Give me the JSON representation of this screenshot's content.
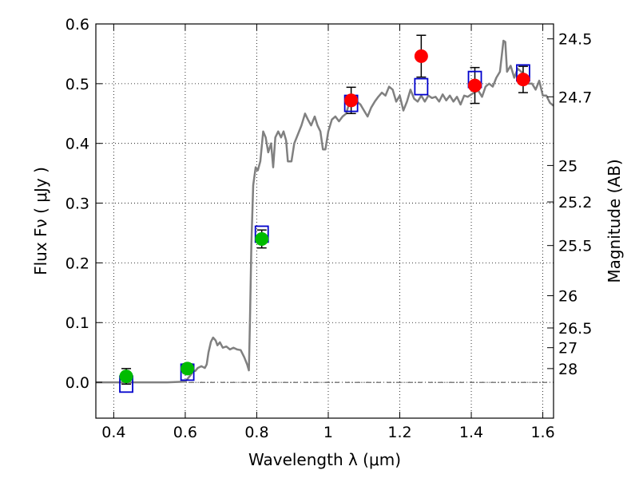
{
  "chart_data": {
    "type": "scatter",
    "xlabel": "Wavelength  λ (μm)",
    "ylabel": "Flux  Fν  ( μJy )",
    "y2label": "Magnitude (AB)",
    "xlim": [
      0.35,
      1.63
    ],
    "ylim": [
      -0.06,
      0.6
    ],
    "grid": true,
    "x_ticks": [
      0.4,
      0.6,
      0.8,
      1.0,
      1.2,
      1.4,
      1.6
    ],
    "x_tick_labels": [
      "0.4",
      "0.6",
      "0.8",
      "1",
      "1.2",
      "1.4",
      "1.6"
    ],
    "y_ticks": [
      0.0,
      0.1,
      0.2,
      0.3,
      0.4,
      0.5,
      0.6
    ],
    "y_tick_labels": [
      "0.0",
      "0.1",
      "0.2",
      "0.3",
      "0.4",
      "0.5",
      "0.6"
    ],
    "y2_ticks": [
      {
        "label": "24.5",
        "flux": 0.575
      },
      {
        "label": "24.7",
        "flux": 0.478
      },
      {
        "label": "25",
        "flux": 0.363
      },
      {
        "label": "25.2",
        "flux": 0.302
      },
      {
        "label": "25.5",
        "flux": 0.229
      },
      {
        "label": "26",
        "flux": 0.145
      },
      {
        "label": "26.5",
        "flux": 0.091
      },
      {
        "label": "27",
        "flux": 0.058
      },
      {
        "label": "28",
        "flux": 0.023
      }
    ],
    "colors": {
      "model": "#808080",
      "optical": "#00bb00",
      "nir": "#ff0000",
      "model_box": "#0000cc",
      "errorbar": "#000000"
    },
    "series": [
      {
        "kind": "model-spectrum",
        "points": [
          [
            0.35,
            0.0
          ],
          [
            0.55,
            0.0
          ],
          [
            0.6,
            0.001
          ],
          [
            0.615,
            0.012
          ],
          [
            0.622,
            0.019
          ],
          [
            0.628,
            0.019
          ],
          [
            0.635,
            0.024
          ],
          [
            0.645,
            0.027
          ],
          [
            0.655,
            0.024
          ],
          [
            0.66,
            0.03
          ],
          [
            0.665,
            0.05
          ],
          [
            0.672,
            0.068
          ],
          [
            0.678,
            0.075
          ],
          [
            0.685,
            0.07
          ],
          [
            0.69,
            0.062
          ],
          [
            0.697,
            0.067
          ],
          [
            0.705,
            0.058
          ],
          [
            0.715,
            0.06
          ],
          [
            0.725,
            0.055
          ],
          [
            0.735,
            0.058
          ],
          [
            0.745,
            0.055
          ],
          [
            0.755,
            0.054
          ],
          [
            0.765,
            0.042
          ],
          [
            0.773,
            0.03
          ],
          [
            0.778,
            0.02
          ],
          [
            0.781,
            0.1
          ],
          [
            0.785,
            0.23
          ],
          [
            0.79,
            0.33
          ],
          [
            0.797,
            0.36
          ],
          [
            0.803,
            0.355
          ],
          [
            0.81,
            0.37
          ],
          [
            0.818,
            0.42
          ],
          [
            0.825,
            0.41
          ],
          [
            0.832,
            0.385
          ],
          [
            0.84,
            0.4
          ],
          [
            0.846,
            0.36
          ],
          [
            0.852,
            0.41
          ],
          [
            0.86,
            0.42
          ],
          [
            0.868,
            0.41
          ],
          [
            0.875,
            0.42
          ],
          [
            0.882,
            0.405
          ],
          [
            0.887,
            0.37
          ],
          [
            0.897,
            0.37
          ],
          [
            0.905,
            0.4
          ],
          [
            0.915,
            0.415
          ],
          [
            0.925,
            0.43
          ],
          [
            0.935,
            0.45
          ],
          [
            0.943,
            0.44
          ],
          [
            0.952,
            0.43
          ],
          [
            0.962,
            0.445
          ],
          [
            0.97,
            0.43
          ],
          [
            0.978,
            0.42
          ],
          [
            0.985,
            0.39
          ],
          [
            0.992,
            0.39
          ],
          [
            1.0,
            0.42
          ],
          [
            1.01,
            0.44
          ],
          [
            1.02,
            0.445
          ],
          [
            1.03,
            0.437
          ],
          [
            1.04,
            0.445
          ],
          [
            1.05,
            0.45
          ],
          [
            1.06,
            0.47
          ],
          [
            1.07,
            0.475
          ],
          [
            1.08,
            0.47
          ],
          [
            1.09,
            0.465
          ],
          [
            1.1,
            0.455
          ],
          [
            1.11,
            0.445
          ],
          [
            1.12,
            0.46
          ],
          [
            1.13,
            0.47
          ],
          [
            1.14,
            0.478
          ],
          [
            1.15,
            0.485
          ],
          [
            1.16,
            0.48
          ],
          [
            1.17,
            0.495
          ],
          [
            1.18,
            0.49
          ],
          [
            1.19,
            0.47
          ],
          [
            1.2,
            0.48
          ],
          [
            1.21,
            0.455
          ],
          [
            1.22,
            0.47
          ],
          [
            1.23,
            0.49
          ],
          [
            1.24,
            0.475
          ],
          [
            1.25,
            0.47
          ],
          [
            1.26,
            0.48
          ],
          [
            1.27,
            0.47
          ],
          [
            1.28,
            0.48
          ],
          [
            1.29,
            0.476
          ],
          [
            1.3,
            0.478
          ],
          [
            1.31,
            0.47
          ],
          [
            1.32,
            0.482
          ],
          [
            1.33,
            0.472
          ],
          [
            1.34,
            0.48
          ],
          [
            1.35,
            0.47
          ],
          [
            1.36,
            0.478
          ],
          [
            1.37,
            0.465
          ],
          [
            1.38,
            0.48
          ],
          [
            1.39,
            0.478
          ],
          [
            1.4,
            0.482
          ],
          [
            1.41,
            0.486
          ],
          [
            1.42,
            0.488
          ],
          [
            1.43,
            0.478
          ],
          [
            1.44,
            0.495
          ],
          [
            1.45,
            0.5
          ],
          [
            1.46,
            0.495
          ],
          [
            1.47,
            0.51
          ],
          [
            1.48,
            0.52
          ],
          [
            1.49,
            0.572
          ],
          [
            1.495,
            0.57
          ],
          [
            1.5,
            0.52
          ],
          [
            1.51,
            0.53
          ],
          [
            1.52,
            0.51
          ],
          [
            1.53,
            0.525
          ],
          [
            1.54,
            0.52
          ],
          [
            1.55,
            0.505
          ],
          [
            1.56,
            0.5
          ],
          [
            1.57,
            0.5
          ],
          [
            1.58,
            0.49
          ],
          [
            1.59,
            0.505
          ],
          [
            1.6,
            0.48
          ],
          [
            1.61,
            0.48
          ],
          [
            1.62,
            0.468
          ],
          [
            1.63,
            0.463
          ]
        ]
      },
      {
        "kind": "observed-optical",
        "points": [
          {
            "x": 0.435,
            "y": 0.01,
            "err": 0.013
          },
          {
            "x": 0.606,
            "y": 0.023,
            "err": 0.008
          },
          {
            "x": 0.814,
            "y": 0.24,
            "err": 0.015
          }
        ]
      },
      {
        "kind": "observed-nir",
        "points": [
          {
            "x": 1.064,
            "y": 0.472,
            "err": 0.022
          },
          {
            "x": 1.26,
            "y": 0.546,
            "err": 0.035
          },
          {
            "x": 1.41,
            "y": 0.497,
            "err": 0.03
          },
          {
            "x": 1.545,
            "y": 0.507,
            "err": 0.022
          }
        ]
      },
      {
        "kind": "model-synthetic-photometry",
        "points": [
          {
            "x": 0.435,
            "y": -0.003
          },
          {
            "x": 0.606,
            "y": 0.017
          },
          {
            "x": 0.814,
            "y": 0.248
          },
          {
            "x": 1.064,
            "y": 0.467
          },
          {
            "x": 1.26,
            "y": 0.495
          },
          {
            "x": 1.41,
            "y": 0.507
          },
          {
            "x": 1.545,
            "y": 0.518
          }
        ]
      }
    ]
  }
}
